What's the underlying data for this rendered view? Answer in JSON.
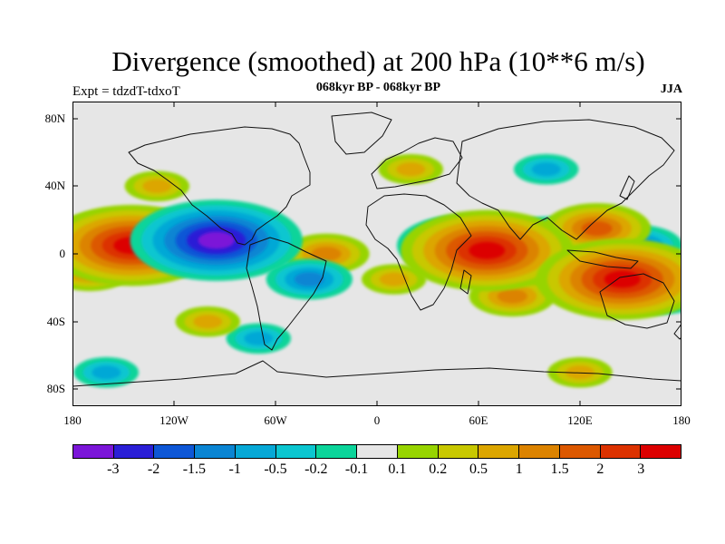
{
  "title": "Divergence (smoothed) at 200 hPa (10**6 m/s)",
  "subtitle": "068kyr BP - 068kyr BP",
  "left_label": "Expt = tdzdT-tdxoT",
  "right_label": "JJA",
  "y_ticks": [
    "80N",
    "40N",
    "0",
    "40S",
    "80S"
  ],
  "x_ticks": [
    "180",
    "120W",
    "60W",
    "0",
    "60E",
    "120E",
    "180"
  ],
  "colorbar": {
    "colors": [
      "#7b16d8",
      "#2b1fd6",
      "#0e57d6",
      "#0a85d3",
      "#06a8d6",
      "#0bc6d0",
      "#0bd49a",
      "#e6e6e6",
      "#97d400",
      "#c8c800",
      "#dca600",
      "#dc8300",
      "#dc5800",
      "#dc3200",
      "#dc0000"
    ],
    "labels": [
      "-3",
      "-2",
      "-1.5",
      "-1",
      "-0.5",
      "-0.2",
      "-0.1",
      "0.1",
      "0.2",
      "0.5",
      "1",
      "1.5",
      "2",
      "3"
    ]
  },
  "chart_data": {
    "type": "heatmap",
    "title": "Divergence (smoothed) at 200 hPa (10**6 m/s)",
    "projection": "cylindrical equidistant",
    "lon_range": [
      -180,
      180
    ],
    "lat_range": [
      -90,
      90
    ],
    "levels": [
      -3,
      -2,
      -1.5,
      -1,
      -0.5,
      -0.2,
      -0.1,
      0.1,
      0.2,
      0.5,
      1,
      1.5,
      2,
      3
    ],
    "anomalies": [
      {
        "lon": -145,
        "lat": 5,
        "value": 3
      },
      {
        "lon": -155,
        "lat": 8,
        "value": 2
      },
      {
        "lon": -95,
        "lat": 8,
        "value": -3
      },
      {
        "lon": -115,
        "lat": 12,
        "value": -1.5
      },
      {
        "lon": -170,
        "lat": -10,
        "value": 1
      },
      {
        "lon": 65,
        "lat": 2,
        "value": 3
      },
      {
        "lon": 50,
        "lat": 5,
        "value": -2
      },
      {
        "lon": 100,
        "lat": 10,
        "value": -1
      },
      {
        "lon": 145,
        "lat": -15,
        "value": 3
      },
      {
        "lon": 165,
        "lat": -18,
        "value": -2
      },
      {
        "lon": 155,
        "lat": 5,
        "value": -1
      },
      {
        "lon": 130,
        "lat": 15,
        "value": 1.5
      },
      {
        "lon": -30,
        "lat": 0,
        "value": 1
      },
      {
        "lon": -40,
        "lat": -15,
        "value": -1
      },
      {
        "lon": 10,
        "lat": -15,
        "value": 0.5
      },
      {
        "lon": -70,
        "lat": -50,
        "value": -0.5
      },
      {
        "lon": -100,
        "lat": -40,
        "value": 0.5
      },
      {
        "lon": 80,
        "lat": -25,
        "value": 1
      },
      {
        "lon": 20,
        "lat": 50,
        "value": 0.5
      },
      {
        "lon": 100,
        "lat": 50,
        "value": -0.5
      },
      {
        "lon": -130,
        "lat": 40,
        "value": 0.5
      },
      {
        "lon": 120,
        "lat": -70,
        "value": 0.5
      },
      {
        "lon": -160,
        "lat": -70,
        "value": -0.5
      }
    ]
  }
}
